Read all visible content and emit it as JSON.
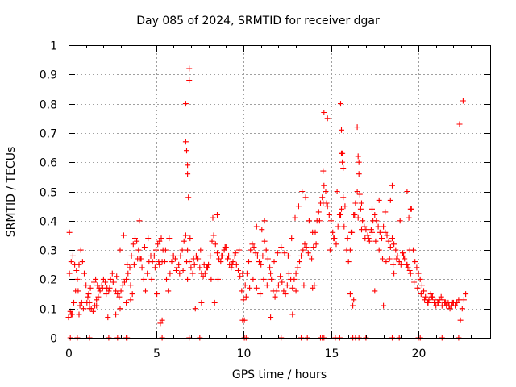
{
  "chart_data": {
    "type": "scatter",
    "title": "Day 085 of 2024, SRMTID for receiver dgar",
    "xlabel": "GPS time / hours",
    "ylabel": "SRMTID / TECUs",
    "xlim": [
      0,
      24.1
    ],
    "ylim": [
      0,
      1
    ],
    "xticks": [
      0,
      5,
      10,
      15,
      20
    ],
    "xtick_labels": [
      "0",
      "5",
      "10",
      "15",
      "20"
    ],
    "yticks": [
      0,
      0.1,
      0.2,
      0.3,
      0.4,
      0.5,
      0.6,
      0.7,
      0.8,
      0.9,
      1
    ],
    "ytick_labels": [
      "0",
      "0.1",
      "0.2",
      "0.3",
      "0.4",
      "0.5",
      "0.6",
      "0.7",
      "0.8",
      "0.9",
      "1"
    ],
    "grid": true,
    "marker": "+",
    "color": "#ff0000",
    "series": [
      {
        "name": "SRMTID",
        "x": [
          0.0,
          0.1,
          0.2,
          0.3,
          0.4,
          0.5,
          0.6,
          0.7,
          0.8,
          0.9,
          1.0,
          1.1,
          1.2,
          1.3,
          1.4,
          1.5,
          1.6,
          1.7,
          1.8,
          1.9,
          2.0,
          2.1,
          2.2,
          2.3,
          2.4,
          2.5,
          2.6,
          2.7,
          2.8,
          2.9,
          3.0,
          3.1,
          3.2,
          3.3,
          3.4,
          3.5,
          3.6,
          3.7,
          3.8,
          3.9,
          4.0,
          4.1,
          4.2,
          4.3,
          4.4,
          4.5,
          4.6,
          4.7,
          4.8,
          4.9,
          5.0,
          5.1,
          5.2,
          5.3,
          5.4,
          5.5,
          5.6,
          5.7,
          5.8,
          5.9,
          6.0,
          6.1,
          6.2,
          6.3,
          6.4,
          6.5,
          6.6,
          6.7,
          6.8,
          6.9,
          7.0,
          7.1,
          7.2,
          7.3,
          7.4,
          7.5,
          7.6,
          7.7,
          7.8,
          7.9,
          8.0,
          8.1,
          8.2,
          8.3,
          8.4,
          8.5,
          8.6,
          8.7,
          8.8,
          8.9,
          9.0,
          9.1,
          9.2,
          9.3,
          9.4,
          9.5,
          9.6,
          9.7,
          9.8,
          9.9,
          10.0,
          10.1,
          10.2,
          10.3,
          10.4,
          10.5,
          10.6,
          10.7,
          10.8,
          10.9,
          11.0,
          11.1,
          11.2,
          11.3,
          11.4,
          11.5,
          11.6,
          11.7,
          11.8,
          11.9,
          12.0,
          12.1,
          12.2,
          12.3,
          12.4,
          12.5,
          12.6,
          12.7,
          12.8,
          12.9,
          13.0,
          13.1,
          13.2,
          13.3,
          13.4,
          13.5,
          13.6,
          13.7,
          13.8,
          13.9,
          14.0,
          14.1,
          14.2,
          14.3,
          14.4,
          14.5,
          14.6,
          14.7,
          14.8,
          14.9,
          15.0,
          15.1,
          15.2,
          15.3,
          15.4,
          15.5,
          15.6,
          15.7,
          15.8,
          15.9,
          16.0,
          16.1,
          16.2,
          16.3,
          16.4,
          16.5,
          16.6,
          16.7,
          16.8,
          16.9,
          17.0,
          17.1,
          17.2,
          17.3,
          17.4,
          17.5,
          17.6,
          17.7,
          17.8,
          17.9,
          18.0,
          18.1,
          18.2,
          18.3,
          18.4,
          18.5,
          18.6,
          18.7,
          18.8,
          18.9,
          19.0,
          19.1,
          19.2,
          19.3,
          19.4,
          19.5,
          19.6,
          19.7,
          19.8,
          19.9,
          20.0,
          20.1,
          20.2,
          20.3,
          20.4,
          20.5,
          20.6,
          20.7,
          20.8,
          20.9,
          21.0,
          21.1,
          21.2,
          21.3,
          21.4,
          21.5,
          21.6,
          21.7,
          21.8,
          21.9,
          22.0,
          22.1,
          22.2,
          22.3,
          22.4,
          22.5,
          22.6,
          22.7,
          0.05,
          0.15,
          0.25,
          0.35,
          0.45,
          0.55,
          0.65,
          0.75,
          0.85,
          1.05,
          1.15,
          1.25,
          1.45,
          1.55,
          1.65,
          1.75,
          1.95,
          2.15,
          2.35,
          2.55,
          2.75,
          2.95,
          3.15,
          3.35,
          3.55,
          3.75,
          3.95,
          4.15,
          4.35,
          4.55,
          4.75,
          4.95,
          5.15,
          5.35,
          5.55,
          5.75,
          5.95,
          6.15,
          6.35,
          6.55,
          6.75,
          6.95,
          7.15,
          7.35,
          7.55,
          7.75,
          7.95,
          8.15,
          8.35,
          8.55,
          8.75,
          8.95,
          9.15,
          9.35,
          9.55,
          9.75,
          9.95,
          10.15,
          10.35,
          10.55,
          10.75,
          10.95,
          11.15,
          11.35,
          11.55,
          11.75,
          11.95,
          12.15,
          12.35,
          12.55,
          12.75,
          12.95,
          13.15,
          13.35,
          13.55,
          13.75,
          13.95,
          14.15,
          14.35,
          14.55,
          14.75,
          14.95,
          15.15,
          15.35,
          15.55,
          15.75,
          15.95,
          16.15,
          16.35,
          16.55,
          16.75,
          16.95,
          17.15,
          17.35,
          17.55,
          17.75,
          17.95,
          18.15,
          18.35,
          18.55,
          18.75,
          18.95,
          19.15,
          19.35,
          19.55,
          19.75,
          19.95,
          20.15,
          20.35,
          20.55,
          20.75,
          20.95,
          21.15,
          21.35,
          21.55,
          21.75,
          21.95,
          22.15,
          22.35,
          22.55,
          6.7,
          6.7,
          6.75,
          6.8,
          6.8,
          6.85,
          6.9,
          6.9,
          15.55,
          15.6,
          15.6,
          15.65,
          15.65,
          15.7,
          14.55,
          14.6,
          14.8,
          16.5,
          16.55,
          16.6,
          16.65,
          16.75,
          17.35,
          17.75,
          18.1,
          18.4,
          18.5,
          19.35,
          19.45,
          19.55,
          11.05,
          11.2,
          10.75,
          8.25,
          8.5,
          4.05,
          5.25,
          5.35,
          0.05,
          0.15,
          0.6,
          1.2,
          1.6,
          2.25,
          2.7,
          2.95,
          3.3,
          3.55,
          3.65,
          5.05,
          5.2,
          6.8,
          7.25,
          7.6,
          9.95,
          10.05,
          11.55,
          12.8,
          13.0,
          13.45,
          13.95,
          14.05,
          16.1,
          16.25,
          16.3,
          17.5,
          18.0,
          18.6,
          19.5
        ],
        "y": [
          0.07,
          0.09,
          0.08,
          0.12,
          0.16,
          0.2,
          0.25,
          0.3,
          0.26,
          0.22,
          0.18,
          0.14,
          0.12,
          0.1,
          0.09,
          0.11,
          0.13,
          0.14,
          0.16,
          0.18,
          0.2,
          0.19,
          0.17,
          0.16,
          0.2,
          0.22,
          0.19,
          0.16,
          0.15,
          0.14,
          0.16,
          0.18,
          0.19,
          0.2,
          0.22,
          0.24,
          0.28,
          0.32,
          0.34,
          0.33,
          0.3,
          0.27,
          0.24,
          0.2,
          0.16,
          0.22,
          0.26,
          0.28,
          0.26,
          0.28,
          0.3,
          0.32,
          0.33,
          0.34,
          0.3,
          0.26,
          0.2,
          0.16,
          0.22,
          0.26,
          0.28,
          0.27,
          0.24,
          0.25,
          0.28,
          0.3,
          0.33,
          0.35,
          0.3,
          0.26,
          0.24,
          0.22,
          0.25,
          0.28,
          0.27,
          0.24,
          0.22,
          0.21,
          0.22,
          0.24,
          0.25,
          0.28,
          0.33,
          0.35,
          0.32,
          0.29,
          0.27,
          0.26,
          0.28,
          0.3,
          0.31,
          0.27,
          0.25,
          0.24,
          0.26,
          0.28,
          0.25,
          0.23,
          0.21,
          0.16,
          0.13,
          0.18,
          0.22,
          0.26,
          0.3,
          0.32,
          0.31,
          0.29,
          0.28,
          0.26,
          0.25,
          0.28,
          0.33,
          0.3,
          0.27,
          0.24,
          0.2,
          0.16,
          0.14,
          0.16,
          0.18,
          0.21,
          0.19,
          0.16,
          0.15,
          0.18,
          0.22,
          0.2,
          0.17,
          0.2,
          0.22,
          0.24,
          0.26,
          0.28,
          0.3,
          0.32,
          0.31,
          0.29,
          0.28,
          0.27,
          0.31,
          0.36,
          0.4,
          0.43,
          0.46,
          0.48,
          0.52,
          0.5,
          0.45,
          0.42,
          0.4,
          0.36,
          0.34,
          0.32,
          0.38,
          0.42,
          0.44,
          0.48,
          0.45,
          0.3,
          0.26,
          0.3,
          0.36,
          0.42,
          0.46,
          0.5,
          0.56,
          0.44,
          0.4,
          0.38,
          0.37,
          0.35,
          0.33,
          0.37,
          0.4,
          0.42,
          0.4,
          0.38,
          0.36,
          0.34,
          0.38,
          0.36,
          0.35,
          0.33,
          0.31,
          0.34,
          0.32,
          0.3,
          0.28,
          0.26,
          0.25,
          0.29,
          0.27,
          0.25,
          0.24,
          0.3,
          0.44,
          0.3,
          0.26,
          0.24,
          0.22,
          0.2,
          0.18,
          0.16,
          0.14,
          0.12,
          0.13,
          0.15,
          0.14,
          0.12,
          0.11,
          0.12,
          0.13,
          0.14,
          0.13,
          0.12,
          0.11,
          0.12,
          0.1,
          0.11,
          0.12,
          0.11,
          0.12,
          0.13,
          0.06,
          0.1,
          0.13,
          0.15,
          0.22,
          0.26,
          0.28,
          0.25,
          0.23,
          0.16,
          0.11,
          0.12,
          0.1,
          0.12,
          0.15,
          0.17,
          0.19,
          0.2,
          0.18,
          0.17,
          0.17,
          0.15,
          0.17,
          0.19,
          0.21,
          0.3,
          0.35,
          0.25,
          0.18,
          0.25,
          0.27,
          0.27,
          0.31,
          0.34,
          0.2,
          0.24,
          0.26,
          0.26,
          0.3,
          0.34,
          0.28,
          0.23,
          0.22,
          0.23,
          0.26,
          0.34,
          0.27,
          0.27,
          0.3,
          0.25,
          0.24,
          0.2,
          0.12,
          0.2,
          0.28,
          0.31,
          0.28,
          0.25,
          0.29,
          0.3,
          0.22,
          0.14,
          0.17,
          0.2,
          0.17,
          0.15,
          0.2,
          0.18,
          0.22,
          0.26,
          0.29,
          0.31,
          0.29,
          0.28,
          0.34,
          0.41,
          0.45,
          0.5,
          0.48,
          0.4,
          0.36,
          0.32,
          0.4,
          0.46,
          0.46,
          0.3,
          0.34,
          0.5,
          0.42,
          0.38,
          0.34,
          0.36,
          0.42,
          0.41,
          0.37,
          0.34,
          0.34,
          0.36,
          0.33,
          0.3,
          0.27,
          0.26,
          0.27,
          0.25,
          0.27,
          0.4,
          0.28,
          0.25,
          0.22,
          0.19,
          0.17,
          0.15,
          0.13,
          0.12,
          0.14,
          0.13,
          0.12,
          0.11,
          0.12,
          0.11,
          0.12,
          0.12,
          0.73,
          0.81,
          0.8,
          0.67,
          0.64,
          0.59,
          0.56,
          0.48,
          0.92,
          0.88,
          0.8,
          0.71,
          0.63,
          0.6,
          0.63,
          0.58,
          0.57,
          0.77,
          0.75,
          0.72,
          0.62,
          0.6,
          0.49,
          0.46,
          0.44,
          0.47,
          0.43,
          0.47,
          0.52,
          0.5,
          0.41,
          0.44,
          0.37,
          0.4,
          0.38,
          0.41,
          0.42,
          0.4,
          0.05,
          0.06,
          0.36,
          0.08,
          0.08,
          0.1,
          0.11,
          0.07,
          0.08,
          0.1,
          0.12,
          0.13,
          0.15,
          0.15,
          0.25,
          0.2,
          0.1,
          0.12,
          0.06,
          0.06,
          0.07,
          0.08,
          0.16,
          0.18,
          0.17,
          0.18,
          0.15,
          0.11,
          0.13,
          0.16,
          0.11,
          0.22,
          0.23
        ]
      }
    ],
    "bottom_markers_x": [
      0.1,
      0.5,
      1.2,
      2.3,
      2.8,
      3.3,
      3.35,
      5.35,
      6.9,
      7.5,
      10.05,
      10.15,
      12.15,
      13.3,
      13.65,
      14.4,
      14.5,
      14.6,
      15.25,
      15.5,
      16.25,
      16.4,
      16.6,
      17.0,
      18.5,
      18.9,
      20.0,
      20.1,
      21.35,
      22.3
    ]
  }
}
